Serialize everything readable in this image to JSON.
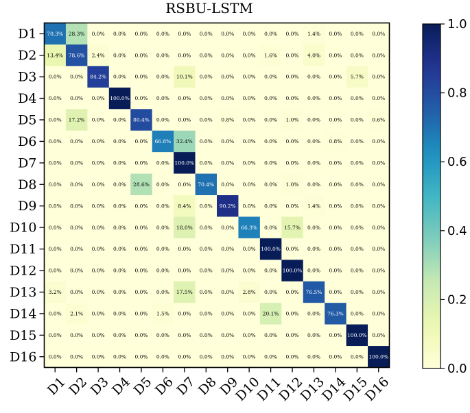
{
  "chart_data": {
    "type": "heatmap",
    "title": "RSBU-LSTM",
    "xlabel": "",
    "ylabel": "",
    "rows": [
      "D1",
      "D2",
      "D3",
      "D4",
      "D5",
      "D6",
      "D7",
      "D8",
      "D9",
      "D10",
      "D11",
      "D12",
      "D13",
      "D14",
      "D15",
      "D16"
    ],
    "cols": [
      "D1",
      "D2",
      "D3",
      "D4",
      "D5",
      "D6",
      "D7",
      "D8",
      "D9",
      "D10",
      "D11",
      "D12",
      "D13",
      "D14",
      "D15",
      "D16"
    ],
    "values": [
      [
        70.3,
        28.3,
        0.0,
        0.0,
        0.0,
        0.0,
        0.0,
        0.0,
        0.0,
        0.0,
        0.0,
        0.0,
        1.4,
        0.0,
        0.0,
        0.0
      ],
      [
        13.4,
        78.6,
        2.4,
        0.0,
        0.0,
        0.0,
        0.0,
        0.0,
        0.0,
        0.0,
        1.6,
        0.0,
        4.0,
        0.0,
        0.0,
        0.0
      ],
      [
        0.0,
        0.0,
        84.2,
        0.0,
        0.0,
        0.0,
        10.1,
        0.0,
        0.0,
        0.0,
        0.0,
        0.0,
        0.0,
        0.0,
        5.7,
        0.0
      ],
      [
        0.0,
        0.0,
        0.0,
        100.0,
        0.0,
        0.0,
        0.0,
        0.0,
        0.0,
        0.0,
        0.0,
        0.0,
        0.0,
        0.0,
        0.0,
        0.0
      ],
      [
        0.0,
        17.2,
        0.0,
        0.0,
        80.4,
        0.0,
        0.0,
        0.0,
        0.8,
        0.0,
        0.0,
        1.0,
        0.0,
        0.0,
        0.0,
        0.6
      ],
      [
        0.0,
        0.0,
        0.0,
        0.0,
        0.0,
        66.8,
        32.4,
        0.0,
        0.0,
        0.0,
        0.0,
        0.0,
        0.0,
        0.8,
        0.0,
        0.0
      ],
      [
        0.0,
        0.0,
        0.0,
        0.0,
        0.0,
        0.0,
        100.0,
        0.0,
        0.0,
        0.0,
        0.0,
        0.0,
        0.0,
        0.0,
        0.0,
        0.0
      ],
      [
        0.0,
        0.0,
        0.0,
        0.0,
        28.6,
        0.0,
        0.0,
        70.4,
        0.0,
        0.0,
        0.0,
        1.0,
        0.0,
        0.0,
        0.0,
        0.0
      ],
      [
        0.0,
        0.0,
        0.0,
        0.0,
        0.0,
        0.0,
        8.4,
        0.0,
        90.2,
        0.0,
        0.0,
        0.0,
        1.4,
        0.0,
        0.0,
        0.0
      ],
      [
        0.0,
        0.0,
        0.0,
        0.0,
        0.0,
        0.0,
        18.0,
        0.0,
        0.0,
        66.3,
        0.0,
        15.7,
        0.0,
        0.0,
        0.0,
        0.0
      ],
      [
        0.0,
        0.0,
        0.0,
        0.0,
        0.0,
        0.0,
        0.0,
        0.0,
        0.0,
        0.0,
        100.0,
        0.0,
        0.0,
        0.0,
        0.0,
        0.0
      ],
      [
        0.0,
        0.0,
        0.0,
        0.0,
        0.0,
        0.0,
        0.0,
        0.0,
        0.0,
        0.0,
        0.0,
        100.0,
        0.0,
        0.0,
        0.0,
        0.0
      ],
      [
        3.2,
        0.0,
        0.0,
        0.0,
        0.0,
        0.0,
        17.5,
        0.0,
        0.0,
        2.8,
        0.0,
        0.0,
        76.5,
        0.0,
        0.0,
        0.0
      ],
      [
        0.0,
        2.1,
        0.0,
        0.0,
        0.0,
        1.5,
        0.0,
        0.0,
        0.0,
        0.0,
        20.1,
        0.0,
        0.0,
        76.3,
        0.0,
        0.0
      ],
      [
        0.0,
        0.0,
        0.0,
        0.0,
        0.0,
        0.0,
        0.0,
        0.0,
        0.0,
        0.0,
        0.0,
        0.0,
        0.0,
        0.0,
        100.0,
        0.0
      ],
      [
        0.0,
        0.0,
        0.0,
        0.0,
        0.0,
        0.0,
        0.0,
        0.0,
        0.0,
        0.0,
        0.0,
        0.0,
        0.0,
        0.0,
        0.0,
        100.0
      ]
    ],
    "value_suffix": "%",
    "colormap": "YlGnBu",
    "colorbar": {
      "range": [
        0.0,
        1.0
      ],
      "ticks": [
        "0.0",
        "0.2",
        "0.4",
        "0.6",
        "0.8",
        "1.0"
      ]
    },
    "colors": {
      "low": "#ffffd9",
      "high": "#081d58"
    }
  }
}
